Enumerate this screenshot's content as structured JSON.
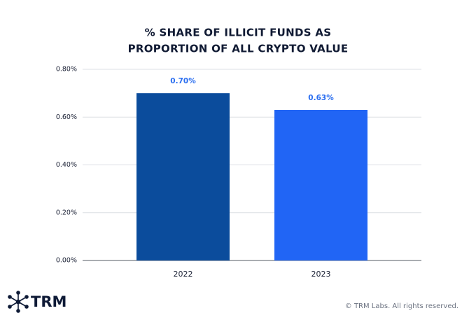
{
  "chart_data": {
    "type": "bar",
    "title": [
      "% SHARE OF ILLICIT FUNDS AS",
      "PROPORTION OF ALL CRYPTO VALUE"
    ],
    "categories": [
      "2022",
      "2023"
    ],
    "values": [
      0.7,
      0.63
    ],
    "value_labels": [
      "0.70%",
      "0.63%"
    ],
    "colors": [
      "#0b4c9c",
      "#2165f5"
    ],
    "value_label_color": "#2a6ef0",
    "ylim": [
      0,
      0.8
    ],
    "yticks": [
      {
        "value": 0,
        "label": "0.00%"
      },
      {
        "value": 0.2,
        "label": "0.20%"
      },
      {
        "value": 0.4,
        "label": "0.40%"
      },
      {
        "value": 0.6,
        "label": "0.60%"
      },
      {
        "value": 0.8,
        "label": "0.80%"
      }
    ],
    "grid": true
  },
  "branding": {
    "logo": "TRM",
    "copyright": "© TRM Labs. All rights reserved."
  }
}
